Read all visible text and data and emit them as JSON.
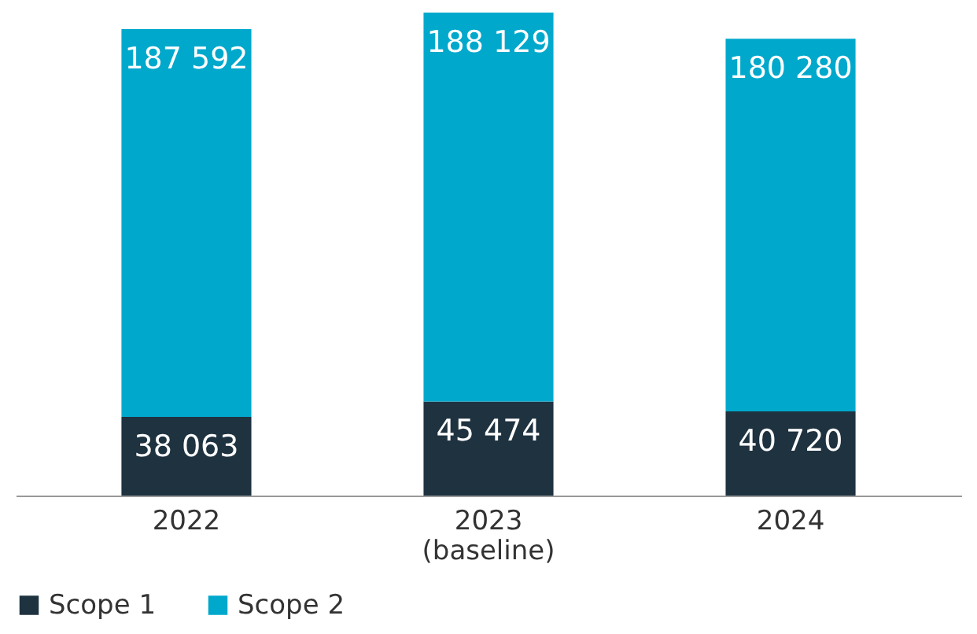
{
  "chart_data": {
    "type": "bar",
    "stacked": true,
    "categories": [
      "2022",
      "2023\n(baseline)",
      "2024"
    ],
    "series": [
      {
        "name": "Scope 1",
        "color": "#1e3240",
        "values": [
          38063,
          45474,
          40720
        ],
        "value_labels": [
          "38 063",
          "45 474",
          "40 720"
        ]
      },
      {
        "name": "Scope 2",
        "color": "#00a8cc",
        "values": [
          187592,
          188129,
          180280
        ],
        "value_labels": [
          "187 592",
          "188 129",
          "180 280"
        ]
      }
    ],
    "legend": "bottom",
    "grid": false
  }
}
